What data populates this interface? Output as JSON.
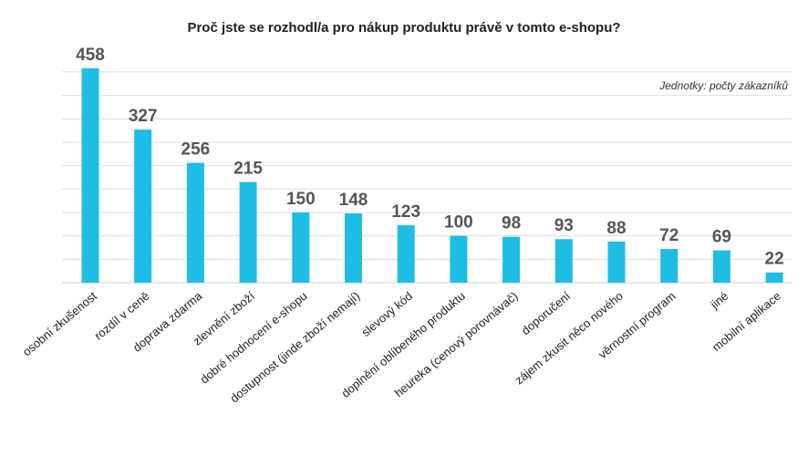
{
  "chart_data": {
    "type": "bar",
    "title": "Proč jste se rozhodl/a pro nákup produktu právě v tomto e-shopu?",
    "annotation": "Jednotky: počty zákazníků",
    "categories": [
      "osobní zkušenost",
      "rozdíl v ceně",
      "doprava zdarma",
      "zlevnění zboží",
      "dobré hodnocení e-shopu",
      "dostupnost (jinde zboží nemají)",
      "slevový kód",
      "doplnění oblíbeného produktu",
      "heureka (cenový porovnávač)",
      "doporučení",
      "zájem zkusit něco nového",
      "věrnostní program",
      "jiné",
      "mobilní aplikace"
    ],
    "values": [
      458,
      327,
      256,
      215,
      150,
      148,
      123,
      100,
      98,
      93,
      88,
      72,
      69,
      22
    ],
    "ylim": [
      0,
      500
    ],
    "grid": true,
    "bar_color": "#1ebde3",
    "grid_color": "#dddddd",
    "label_color": "#555555"
  }
}
